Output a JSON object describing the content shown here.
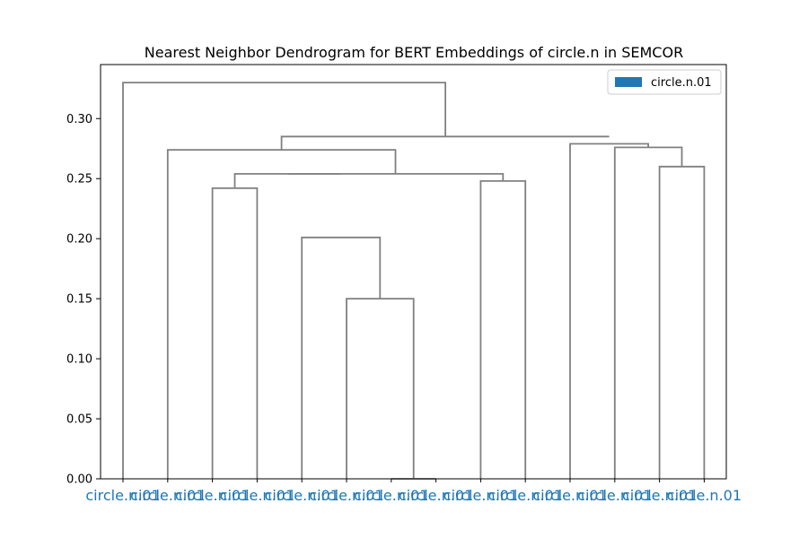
{
  "chart_data": {
    "type": "dendrogram",
    "title": "Nearest Neighbor Dendrogram for BERT Embeddings of circle.n in SEMCOR",
    "xlabel": "",
    "ylabel": "",
    "ylim": [
      0,
      0.345
    ],
    "yticks": [
      "0.00",
      "0.05",
      "0.10",
      "0.15",
      "0.20",
      "0.25",
      "0.30"
    ],
    "ytick_values": [
      0,
      0.05,
      0.1,
      0.15,
      0.2,
      0.25,
      0.3
    ],
    "leaf_labels": [
      "circle.n.01",
      "circle.n.01",
      "circle.n.01",
      "circle.n.01",
      "circle.n.01",
      "circle.n.01",
      "circle.n.01",
      "circle.n.01",
      "circle.n.01",
      "circle.n.01",
      "circle.n.01",
      "circle.n.01",
      "circle.n.01",
      "circle.n.01"
    ],
    "leaf_color": "#1f77b4",
    "link_color": "#808080",
    "legend": {
      "entries": [
        {
          "label": "circle.n.01",
          "color": "#1f77b4"
        }
      ],
      "placement": "top-right"
    },
    "merges": [
      {
        "left": "L6",
        "right": "L7",
        "height": 0.0
      },
      {
        "left": "L5",
        "right": "M0",
        "height": 0.15
      },
      {
        "left": "L4",
        "right": "M1",
        "height": 0.201
      },
      {
        "left": "L2",
        "right": "L3",
        "height": 0.242
      },
      {
        "left": "L8",
        "right": "L9",
        "height": 0.248
      },
      {
        "left": "M3",
        "right": "M2",
        "height": 0.254,
        "branch_heights": [
          0.242,
          0.254
        ]
      },
      {
        "left": "M5",
        "right": "M4",
        "height": 0.254
      },
      {
        "left": "L1",
        "right": "M6",
        "height": 0.274
      },
      {
        "left": "L12",
        "right": "L13",
        "height": 0.26
      },
      {
        "left": "L11",
        "right": "M8",
        "height": 0.276
      },
      {
        "left": "L10",
        "right": "M9",
        "height": 0.279
      },
      {
        "left": "M7",
        "right": "M10",
        "height": 0.285,
        "branch_heights": [
          0.274,
          0.285
        ]
      },
      {
        "left": "L0",
        "right": "M11",
        "height": 0.33
      }
    ]
  }
}
